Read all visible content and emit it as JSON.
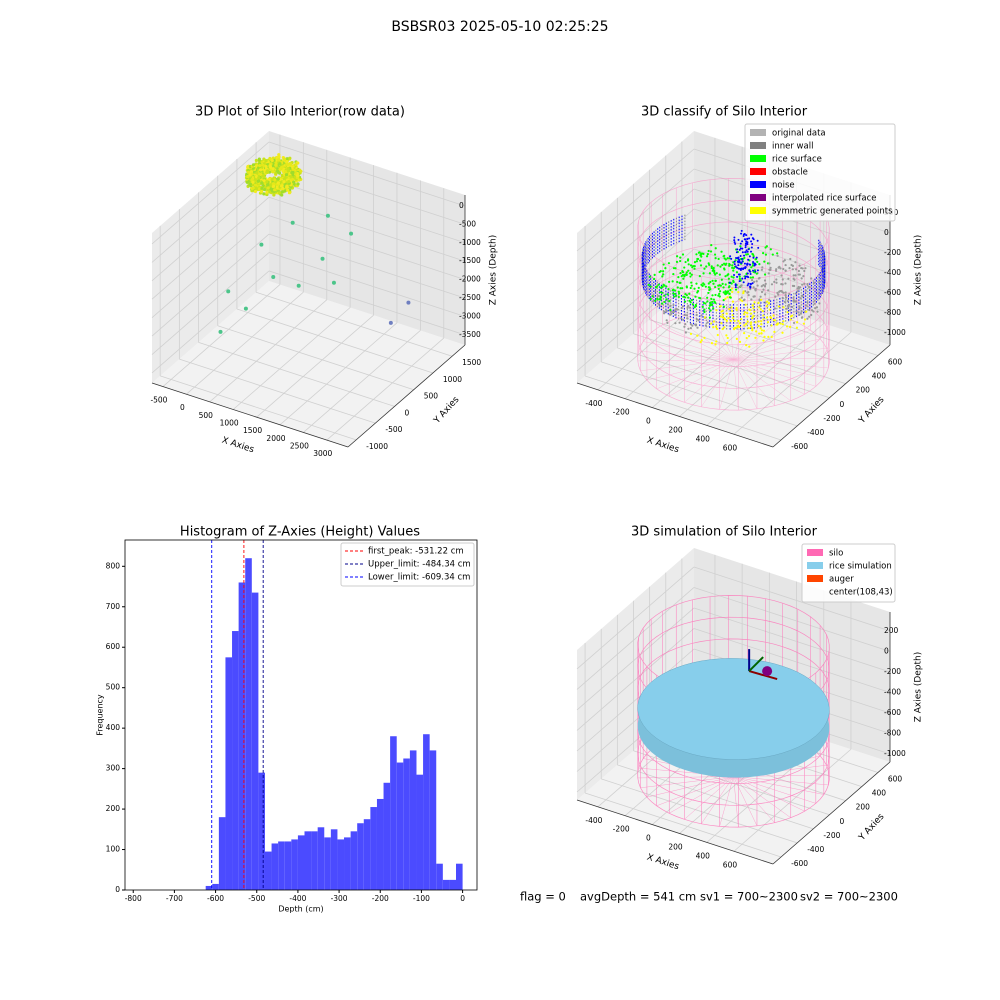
{
  "title": "BSBSR03 2025-05-10 02:25:25",
  "footer": [
    "flag = 0",
    "avgDepth = 541 cm",
    "sv1 = 700~2300",
    "sv2 = 700~2300"
  ],
  "chart_data": [
    {
      "type": "scatter3d",
      "title": "3D Plot of Silo Interior(row data)",
      "xlabel": "X Axies",
      "ylabel": "Y Axies",
      "zlabel": "Z Axies (Depth)",
      "xlim": [
        -734,
        3453
      ],
      "ylim": [
        -1213,
        1836
      ],
      "zlim": [
        -3773,
        297
      ],
      "xticks": [
        -500,
        0,
        500,
        1000,
        1500,
        2000,
        2500,
        3000
      ],
      "yticks": [
        -1000,
        -500,
        0,
        500,
        1000,
        1500
      ],
      "zticks": [
        0,
        -500,
        -1000,
        -1500,
        -2000,
        -2500,
        -3000,
        -3500
      ]
    },
    {
      "type": "scatter3d",
      "title": "3D classify of Silo Interior",
      "xlabel": "X Axies",
      "ylabel": "Y Axies",
      "zlabel": "Z Axies (Depth)",
      "xlim": [
        -554,
        887
      ],
      "ylim": [
        -700,
        750
      ],
      "zlim": [
        -1120,
        380
      ],
      "xticks": [
        -400,
        -200,
        0,
        200,
        400,
        600
      ],
      "yticks": [
        -600,
        -400,
        -200,
        0,
        200,
        400,
        600
      ],
      "zticks": [
        200,
        0,
        -200,
        -400,
        -600,
        -800,
        -1000
      ],
      "legend": [
        {
          "name": "original data",
          "color": "#b3b3b3"
        },
        {
          "name": "inner wall",
          "color": "#808080"
        },
        {
          "name": "rice surface",
          "color": "#00ff00"
        },
        {
          "name": "obstacle",
          "color": "#ff0000"
        },
        {
          "name": "noise",
          "color": "#0000ff"
        },
        {
          "name": "interpolated rice surface",
          "color": "#800080"
        },
        {
          "name": "symmetric generated points",
          "color": "#ffff00"
        }
      ]
    },
    {
      "type": "histogram",
      "title": "Histogram of Z-Axies (Height) Values",
      "xlabel": "Depth (cm)",
      "ylabel": "Frequency",
      "color": "#4b4bff",
      "bins": [
        -624,
        -608,
        -592,
        -576,
        -560,
        -544,
        -528,
        -512,
        -496,
        -480,
        -464,
        -448,
        -432,
        -416,
        -400,
        -384,
        -368,
        -352,
        -336,
        -320,
        -304,
        -288,
        -272,
        -256,
        -240,
        -224,
        -208,
        -192,
        -176,
        -160,
        -144,
        -128,
        -112,
        -96,
        -80,
        -64,
        -48,
        -32,
        -16,
        0
      ],
      "values": [
        10,
        15,
        180,
        575,
        640,
        760,
        820,
        735,
        290,
        95,
        115,
        120,
        120,
        125,
        135,
        145,
        145,
        155,
        130,
        150,
        125,
        130,
        145,
        165,
        175,
        205,
        225,
        265,
        380,
        315,
        325,
        345,
        285,
        385,
        345,
        65,
        25,
        25,
        65
      ],
      "xlim": [
        -820,
        35
      ],
      "ylim": [
        0,
        865
      ],
      "xticks": [
        -800,
        -700,
        -600,
        -500,
        -400,
        -300,
        -200,
        -100,
        0
      ],
      "yticks": [
        0,
        100,
        200,
        300,
        400,
        500,
        600,
        700,
        800
      ],
      "lines": [
        {
          "label": "first_peak: -531.22 cm",
          "value": -531.22,
          "color": "#ff0000"
        },
        {
          "label": "Upper_limit: -484.34 cm",
          "value": -484.34,
          "color": "#00008b"
        },
        {
          "label": "Lower_limit: -609.34 cm",
          "value": -609.34,
          "color": "#0000ff"
        }
      ]
    },
    {
      "type": "scatter3d",
      "title": "3D simulation of Silo Interior",
      "xlabel": "X Axies",
      "ylabel": "Y Axies",
      "zlabel": "Z Axies (Depth)",
      "xlim": [
        -554,
        887
      ],
      "ylim": [
        -700,
        750
      ],
      "zlim": [
        -1078,
        385
      ],
      "xticks": [
        -400,
        -200,
        0,
        200,
        400,
        600
      ],
      "yticks": [
        -600,
        -400,
        -200,
        0,
        200,
        400,
        600
      ],
      "zticks": [
        200,
        0,
        -200,
        -400,
        -600,
        -800,
        -1000
      ],
      "legend": [
        {
          "name": "silo",
          "color": "#ff69b4"
        },
        {
          "name": "rice simulation",
          "color": "#87ceeb"
        },
        {
          "name": "auger",
          "color": "#ff4500"
        },
        {
          "name": "center(108,43)"
        }
      ]
    }
  ]
}
